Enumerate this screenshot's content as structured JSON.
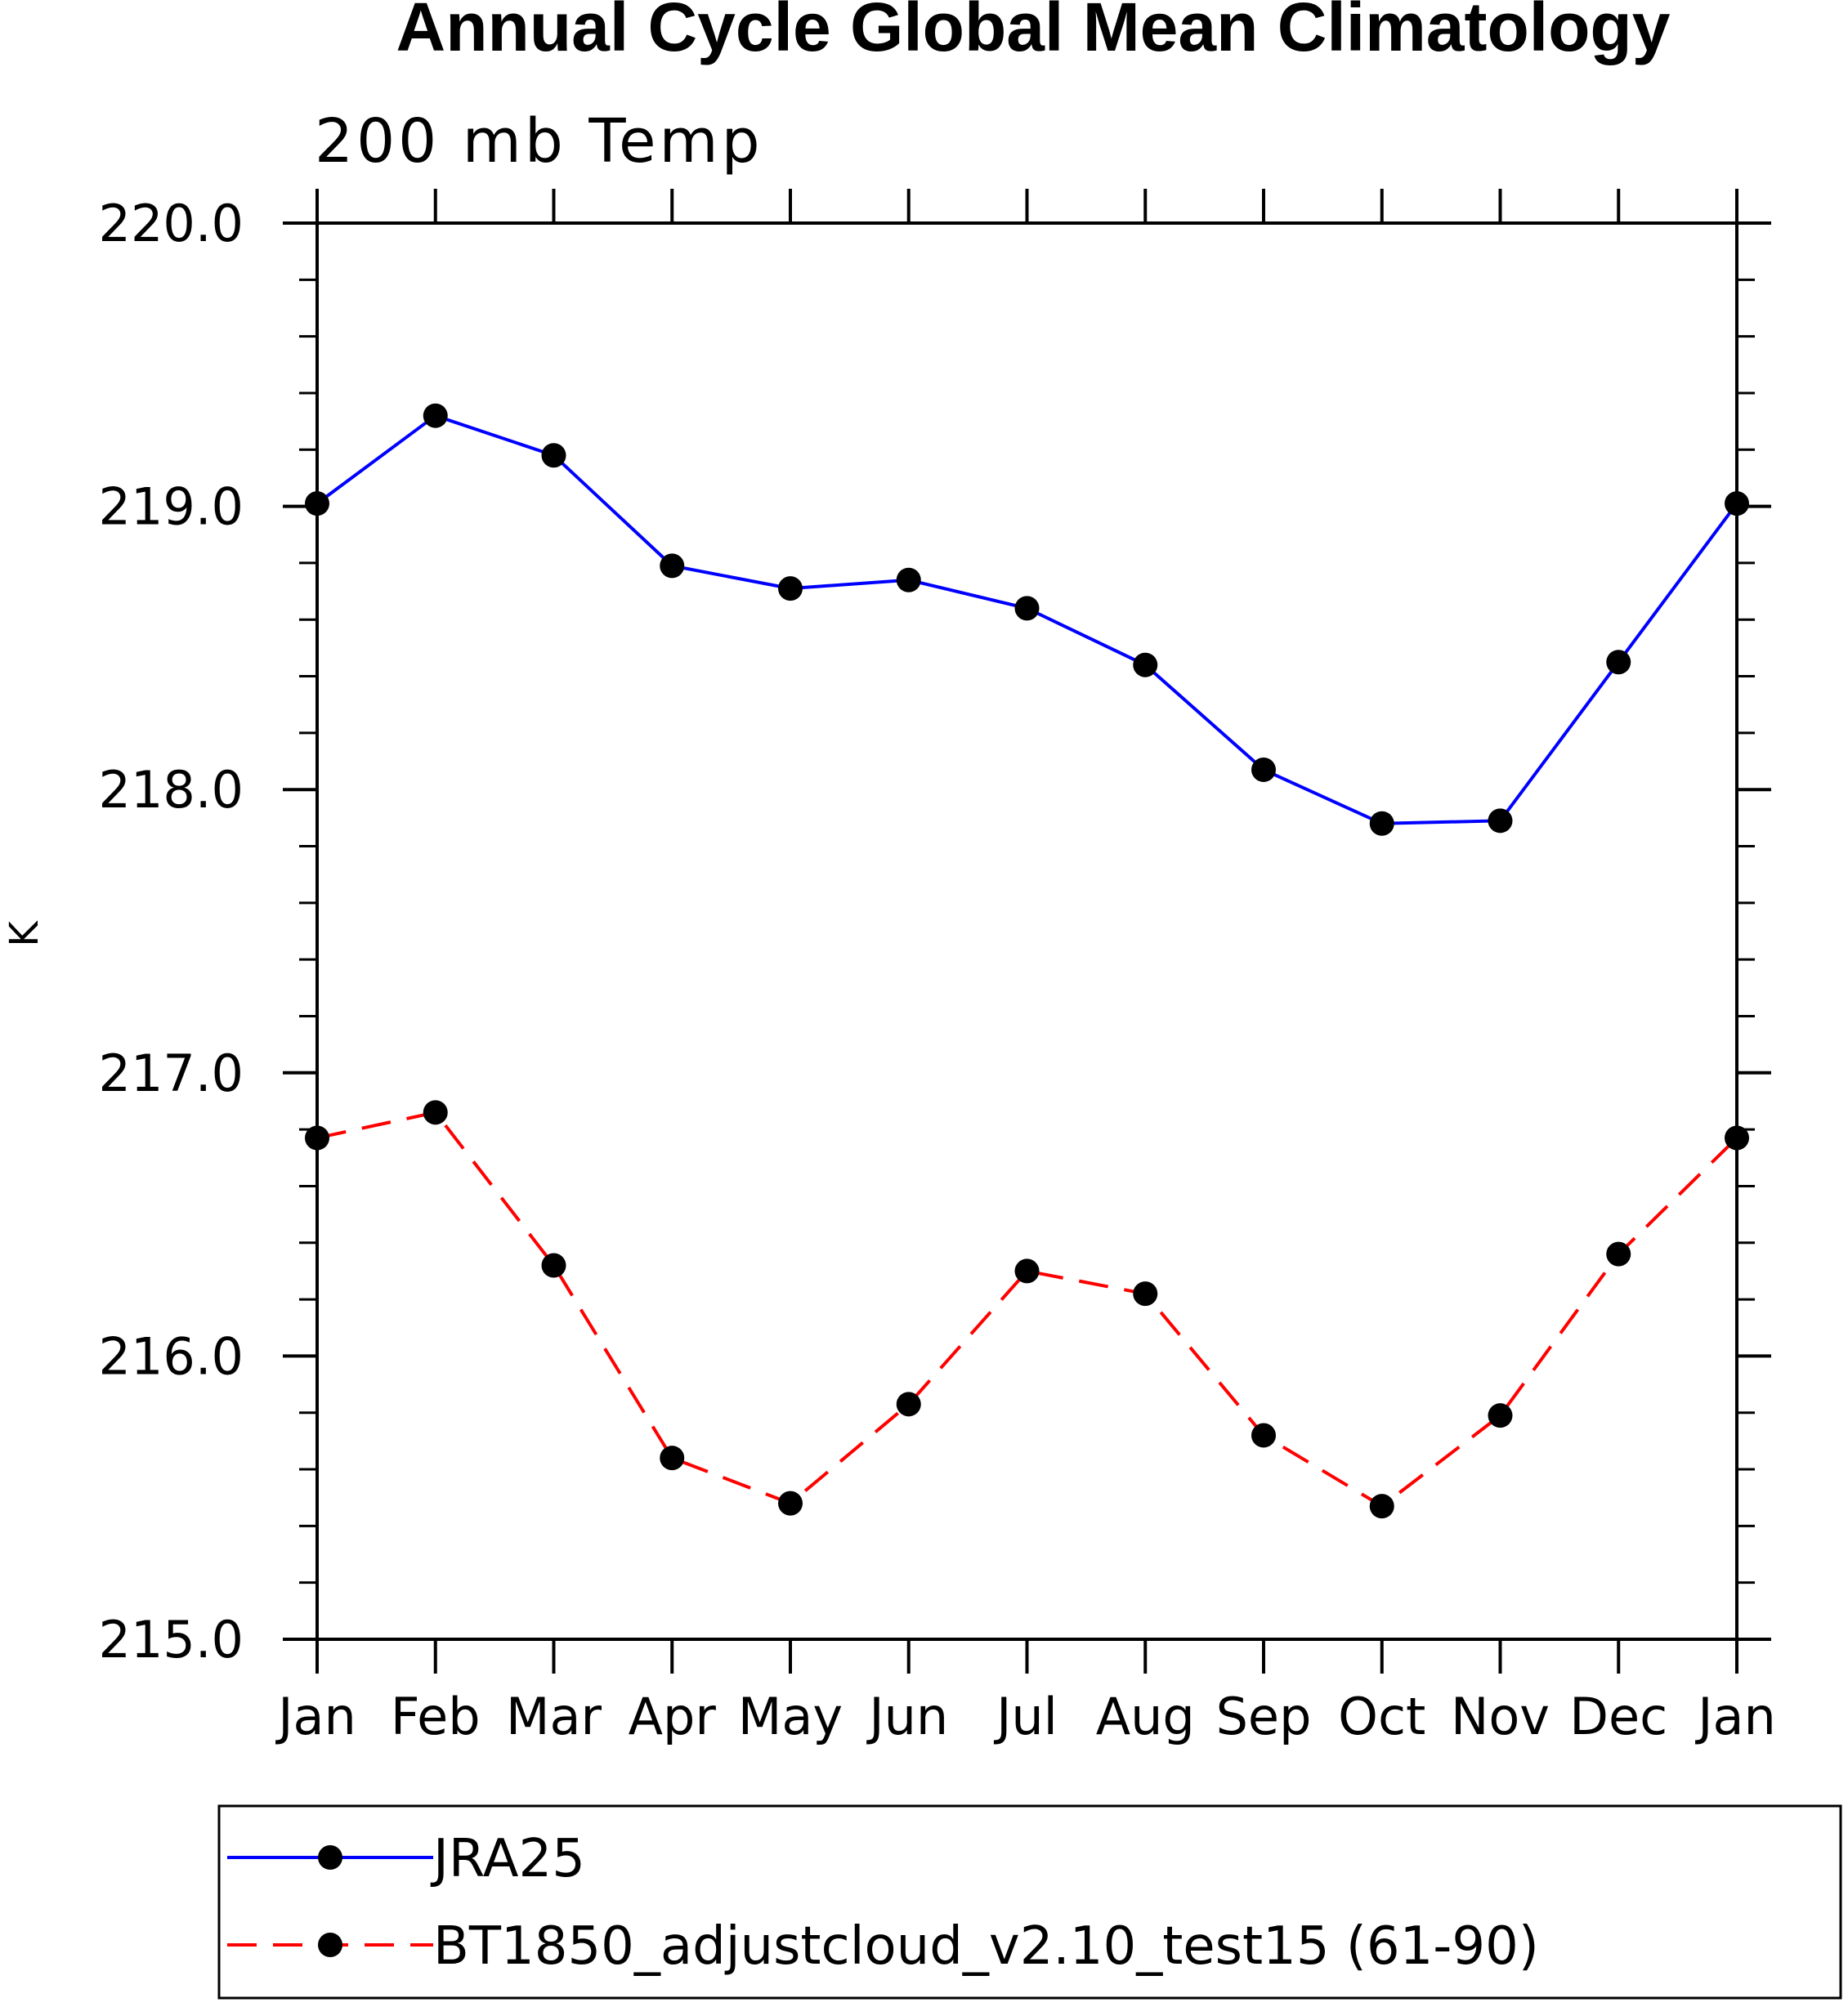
{
  "chart_data": {
    "type": "line",
    "title": "Annual Cycle Global Mean Climatology",
    "subtitle": "200 mb Temp",
    "ylabel": "K",
    "xlabel": "",
    "categories": [
      "Jan",
      "Feb",
      "Mar",
      "Apr",
      "May",
      "Jun",
      "Jul",
      "Aug",
      "Sep",
      "Oct",
      "Nov",
      "Dec",
      "Jan"
    ],
    "ylim": [
      215.0,
      220.0
    ],
    "yticks": [
      "215.0",
      "216.0",
      "217.0",
      "218.0",
      "219.0",
      "220.0"
    ],
    "grid": false,
    "legend_position": "bottom",
    "series": [
      {
        "name": "JRA25",
        "color": "#0000ff",
        "line_style": "solid",
        "marker": "filled-circle",
        "values": [
          219.01,
          219.32,
          219.18,
          218.79,
          218.71,
          218.74,
          218.64,
          218.44,
          218.07,
          217.88,
          217.89,
          218.45,
          219.01
        ]
      },
      {
        "name": "BT1850_adjustcloud_v2.10_test15 (61-90)",
        "color": "#ff0000",
        "line_style": "dashed",
        "marker": "filled-circle",
        "values": [
          216.77,
          216.86,
          216.32,
          215.64,
          215.48,
          215.83,
          216.3,
          216.22,
          215.72,
          215.47,
          215.79,
          216.36,
          216.77
        ]
      }
    ]
  }
}
